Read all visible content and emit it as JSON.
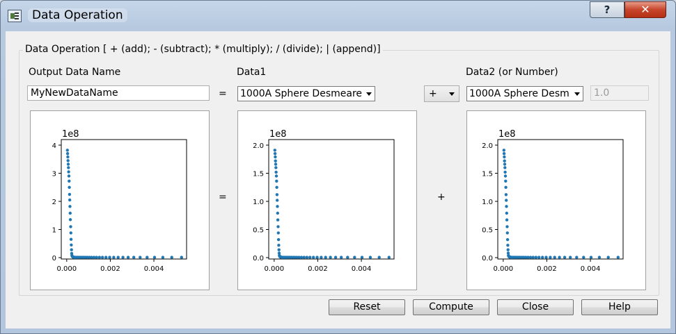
{
  "window": {
    "title": "Data Operation"
  },
  "titlebar": {
    "help_glyph": "?",
    "close_glyph": "✕"
  },
  "groupbox": {
    "title": "Data Operation [ + (add); - (subtract); * (multiply); / (divide); | (append)]"
  },
  "labels": {
    "output": "Output Data Name",
    "data1": "Data1",
    "data2": "Data2 (or Number)"
  },
  "output_name": {
    "value": "MyNewDataName"
  },
  "data1_combo": {
    "value": "1000A Sphere Desmeare"
  },
  "operator_combo": {
    "value": "+"
  },
  "data2_combo": {
    "value": "1000A Sphere Desm"
  },
  "number_field": {
    "value": "1.0"
  },
  "signs": {
    "eq_top": "=",
    "eq_plot": "=",
    "plus_plot": "+"
  },
  "buttons": {
    "reset": "Reset",
    "compute": "Compute",
    "close": "Close",
    "help": "Help"
  },
  "colors": {
    "marker": "#1f77b4"
  },
  "chart_data": [
    {
      "type": "scatter",
      "scale_label": "1e8",
      "ylim": [
        0,
        4
      ],
      "yticks": [
        0,
        1,
        2,
        3,
        4
      ],
      "ytick_labels": [
        "0",
        "1",
        "2",
        "3",
        "4"
      ],
      "xlim": [
        -0.00025,
        0.0055
      ],
      "xticks": [
        0,
        0.002,
        0.004
      ],
      "xtick_labels": [
        "0.000",
        "0.002",
        "0.004"
      ],
      "x": [
        3e-05,
        4e-05,
        5e-05,
        6e-05,
        7e-05,
        8e-05,
        9e-05,
        0.0001,
        0.00011,
        0.00012,
        0.00013,
        0.00014,
        0.00015,
        0.00016,
        0.00017,
        0.00018,
        0.00019,
        0.0002,
        0.00021,
        0.00022,
        0.00023,
        0.00024,
        0.00025,
        0.00026,
        0.00027,
        0.00028,
        0.00029,
        0.0003,
        0.00032,
        0.00034,
        0.00036,
        0.00039,
        0.00042,
        0.00046,
        0.0005,
        0.00055,
        0.0006,
        0.00066,
        0.00072,
        0.00079,
        0.00087,
        0.00095,
        0.00104,
        0.00114,
        0.00125,
        0.00137,
        0.0015,
        0.00164,
        0.0018,
        0.00197,
        0.00216,
        0.00236,
        0.00258,
        0.00282,
        0.00308,
        0.00337,
        0.00369,
        0.00403,
        0.00441,
        0.00482,
        0.00527
      ],
      "y": [
        3.82,
        3.7,
        3.58,
        3.45,
        3.32,
        3.2,
        3.05,
        2.9,
        2.72,
        2.5,
        2.25,
        2.05,
        1.82,
        1.58,
        1.35,
        1.1,
        0.88,
        0.65,
        0.45,
        0.28,
        0.15,
        0.08,
        0.05,
        0.04,
        0.03,
        0.03,
        0.02,
        0.02,
        0.02,
        0.01,
        0.01,
        0.01,
        0.01,
        0.01,
        0.01,
        0.01,
        0.01,
        0.01,
        0.01,
        0.01,
        0.01,
        0.01,
        0.01,
        0.01,
        0.01,
        0.01,
        0.01,
        0.01,
        0.01,
        0.01,
        0.01,
        0.01,
        0.01,
        0.01,
        0.01,
        0.01,
        0.01,
        0.01,
        0.01,
        0.01,
        0.01
      ]
    },
    {
      "type": "scatter",
      "scale_label": "1e8",
      "ylim": [
        0,
        2
      ],
      "yticks": [
        0,
        0.5,
        1,
        1.5,
        2
      ],
      "ytick_labels": [
        "0.0",
        "0.5",
        "1.0",
        "1.5",
        "2.0"
      ],
      "xlim": [
        -0.00025,
        0.0055
      ],
      "xticks": [
        0,
        0.002,
        0.004
      ],
      "xtick_labels": [
        "0.000",
        "0.002",
        "0.004"
      ],
      "x": [
        3e-05,
        4e-05,
        5e-05,
        6e-05,
        7e-05,
        8e-05,
        9e-05,
        0.0001,
        0.00011,
        0.00012,
        0.00013,
        0.00014,
        0.00015,
        0.00016,
        0.00017,
        0.00018,
        0.00019,
        0.0002,
        0.00021,
        0.00022,
        0.00023,
        0.00024,
        0.00025,
        0.00026,
        0.00027,
        0.00028,
        0.00029,
        0.0003,
        0.00032,
        0.00034,
        0.00036,
        0.00039,
        0.00042,
        0.00046,
        0.0005,
        0.00055,
        0.0006,
        0.00066,
        0.00072,
        0.00079,
        0.00087,
        0.00095,
        0.00104,
        0.00114,
        0.00125,
        0.00137,
        0.0015,
        0.00164,
        0.0018,
        0.00197,
        0.00216,
        0.00236,
        0.00258,
        0.00282,
        0.00308,
        0.00337,
        0.00369,
        0.00403,
        0.00441,
        0.00482,
        0.00527
      ],
      "y": [
        1.91,
        1.85,
        1.79,
        1.72,
        1.66,
        1.6,
        1.52,
        1.45,
        1.36,
        1.25,
        1.12,
        1.02,
        0.91,
        0.79,
        0.67,
        0.55,
        0.44,
        0.32,
        0.22,
        0.14,
        0.08,
        0.04,
        0.025,
        0.02,
        0.015,
        0.015,
        0.01,
        0.01,
        0.01,
        0.005,
        0.005,
        0.005,
        0.005,
        0.005,
        0.005,
        0.005,
        0.005,
        0.005,
        0.005,
        0.005,
        0.005,
        0.005,
        0.005,
        0.005,
        0.005,
        0.005,
        0.005,
        0.005,
        0.005,
        0.005,
        0.005,
        0.005,
        0.005,
        0.005,
        0.005,
        0.005,
        0.005,
        0.005,
        0.005,
        0.005,
        0.005
      ]
    },
    {
      "type": "scatter",
      "scale_label": "1e8",
      "ylim": [
        0,
        2
      ],
      "yticks": [
        0,
        0.5,
        1,
        1.5,
        2
      ],
      "ytick_labels": [
        "0.0",
        "0.5",
        "1.0",
        "1.5",
        "2.0"
      ],
      "xlim": [
        -0.00025,
        0.0055
      ],
      "xticks": [
        0,
        0.002,
        0.004
      ],
      "xtick_labels": [
        "0.000",
        "0.002",
        "0.004"
      ],
      "x": [
        3e-05,
        4e-05,
        5e-05,
        6e-05,
        7e-05,
        8e-05,
        9e-05,
        0.0001,
        0.00011,
        0.00012,
        0.00013,
        0.00014,
        0.00015,
        0.00016,
        0.00017,
        0.00018,
        0.00019,
        0.0002,
        0.00021,
        0.00022,
        0.00023,
        0.00024,
        0.00025,
        0.00026,
        0.00027,
        0.00028,
        0.00029,
        0.0003,
        0.00032,
        0.00034,
        0.00036,
        0.00039,
        0.00042,
        0.00046,
        0.0005,
        0.00055,
        0.0006,
        0.00066,
        0.00072,
        0.00079,
        0.00087,
        0.00095,
        0.00104,
        0.00114,
        0.00125,
        0.00137,
        0.0015,
        0.00164,
        0.0018,
        0.00197,
        0.00216,
        0.00236,
        0.00258,
        0.00282,
        0.00308,
        0.00337,
        0.00369,
        0.00403,
        0.00441,
        0.00482,
        0.00527
      ],
      "y": [
        1.91,
        1.85,
        1.79,
        1.72,
        1.66,
        1.6,
        1.52,
        1.45,
        1.36,
        1.25,
        1.12,
        1.02,
        0.91,
        0.79,
        0.67,
        0.55,
        0.44,
        0.32,
        0.22,
        0.14,
        0.08,
        0.04,
        0.025,
        0.02,
        0.015,
        0.015,
        0.01,
        0.01,
        0.01,
        0.005,
        0.005,
        0.005,
        0.005,
        0.005,
        0.005,
        0.005,
        0.005,
        0.005,
        0.005,
        0.005,
        0.005,
        0.005,
        0.005,
        0.005,
        0.005,
        0.005,
        0.005,
        0.005,
        0.005,
        0.005,
        0.005,
        0.005,
        0.005,
        0.005,
        0.005,
        0.005,
        0.005,
        0.005,
        0.005,
        0.005,
        0.005
      ]
    }
  ]
}
